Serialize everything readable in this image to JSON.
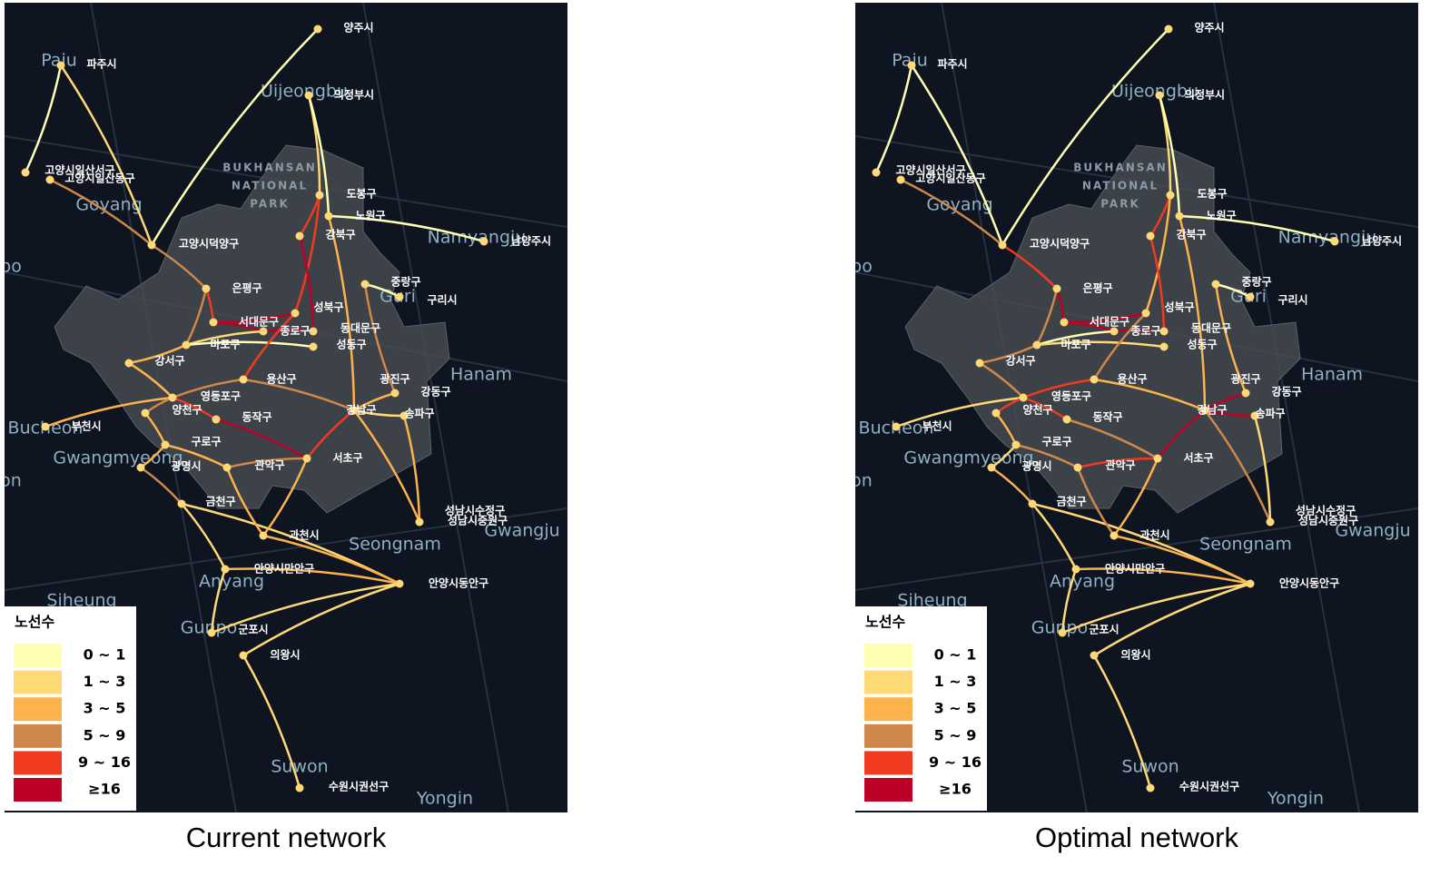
{
  "legend": {
    "title": "노선수",
    "items": [
      {
        "label": "0 ~ 1",
        "color": "#ffffb2"
      },
      {
        "label": "1 ~ 3",
        "color": "#fed976"
      },
      {
        "label": "3 ~ 5",
        "color": "#feb24c"
      },
      {
        "label": "5 ~ 9",
        "color": "#d0874a"
      },
      {
        "label": "9 ~ 16",
        "color": "#f03b20"
      },
      {
        "label": "≥16",
        "color": "#bd0026"
      }
    ]
  },
  "places": [
    "양주시",
    "파주시",
    "의정부시",
    "고양시일산서구",
    "고양시일산동구",
    "도봉구",
    "노원구",
    "남양주시",
    "강북구",
    "고양시덕양구",
    "중랑구",
    "은평구",
    "구리시",
    "성북구",
    "서대문구",
    "종로구",
    "동대문구",
    "마포구",
    "성동구",
    "강서구",
    "용산구",
    "광진구",
    "강동구",
    "영등포구",
    "양천구",
    "동작구",
    "강남구",
    "송파구",
    "구로구",
    "광명시",
    "관악구",
    "서초구",
    "금천구",
    "성남시수정구",
    "성남시중원구",
    "과천시",
    "안양시만안구",
    "안양시동안구",
    "군포시",
    "의왕시",
    "수원시권선구",
    "부천시"
  ],
  "areas": [
    "Paju",
    "Uijeongbu",
    "Goyang",
    "Namyangju",
    "Guri",
    "Hanam",
    "Bucheon",
    "Gwangmyeong",
    "Seongnam",
    "Gwangju",
    "Anyang",
    "Siheung",
    "Gunpo",
    "Suwon",
    "Yongin",
    "po",
    "on"
  ],
  "park": [
    "BUKHANSAN",
    "NATIONAL",
    "PARK"
  ],
  "panels": [
    {
      "caption": "Current network"
    },
    {
      "caption": "Optimal network"
    }
  ]
}
